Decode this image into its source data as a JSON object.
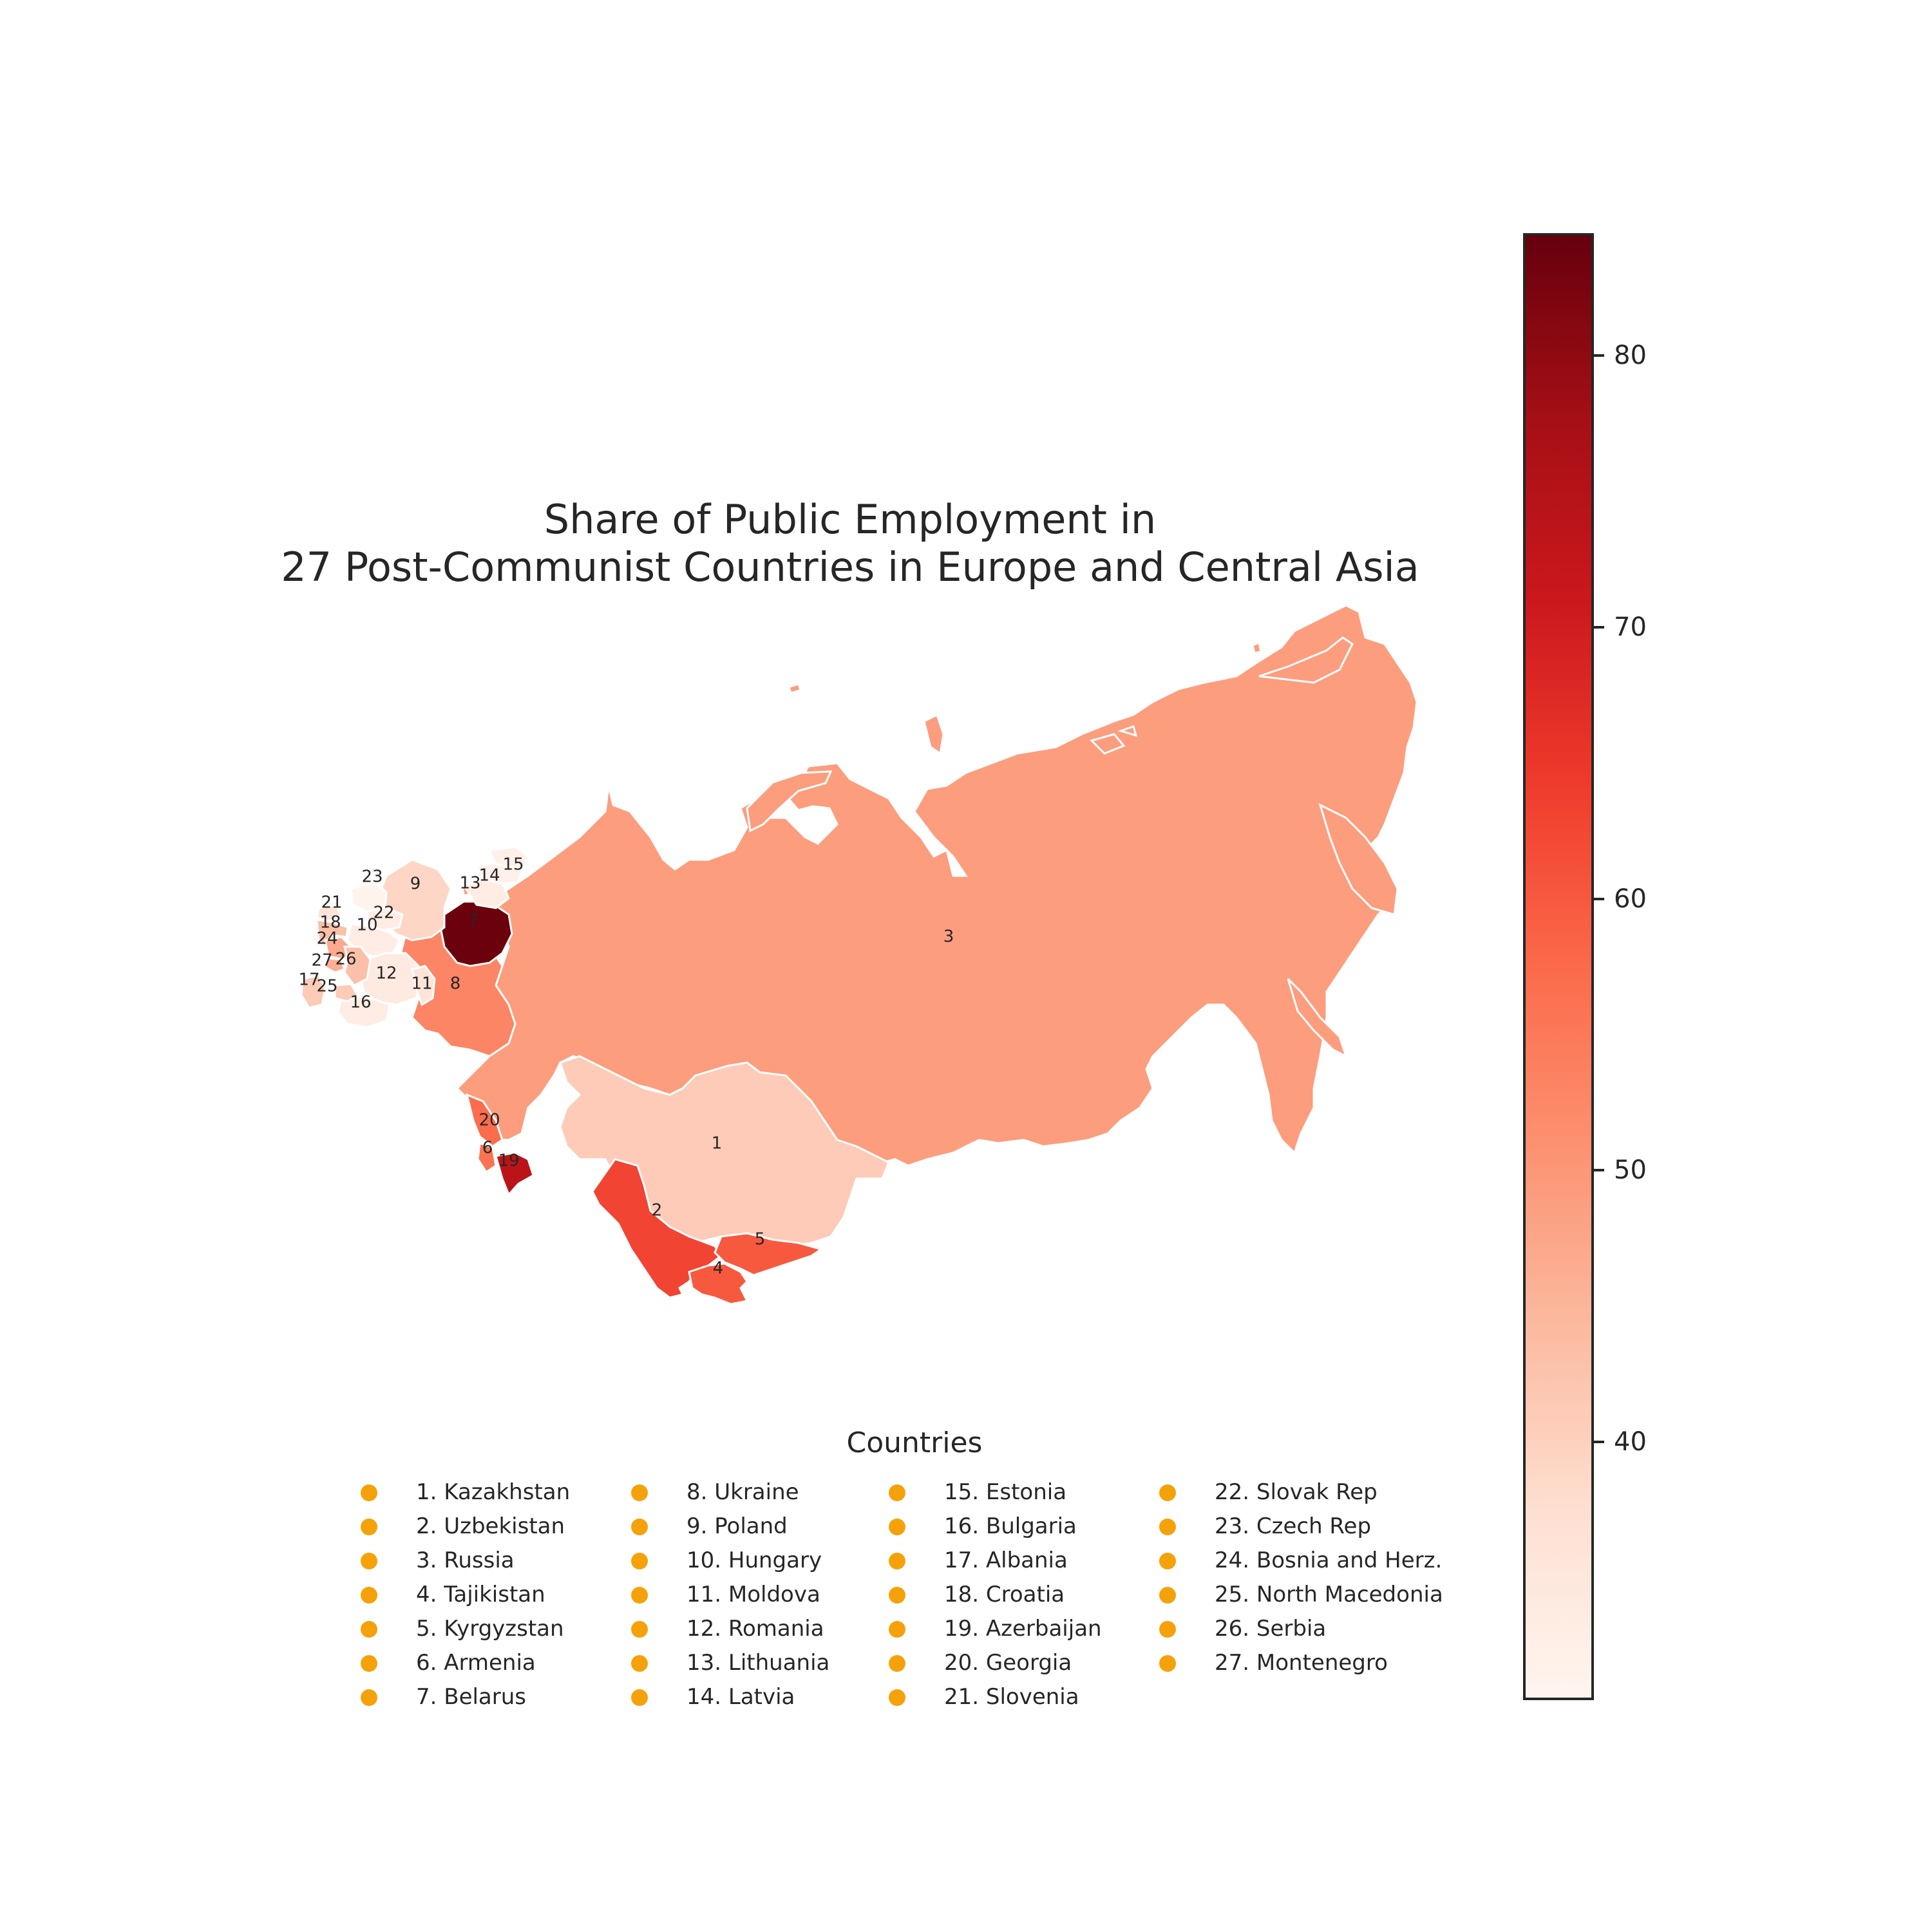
{
  "title_line1": "Share of Public Employment in",
  "title_line2": "27 Post-Communist Countries in Europe and Central Asia",
  "legend": {
    "title": "Countries",
    "marker_color": "#f5a20a",
    "items": [
      "1. Kazakhstan",
      "2. Uzbekistan",
      "3. Russia",
      "4. Tajikistan",
      "5. Kyrgyzstan",
      "6. Armenia",
      "7. Belarus",
      "8. Ukraine",
      "9. Poland",
      "10. Hungary",
      "11. Moldova",
      "12. Romania",
      "13. Lithuania",
      "14. Latvia",
      "15. Estonia",
      "16. Bulgaria",
      "17. Albania",
      "18. Croatia",
      "19. Azerbaijan",
      "20. Georgia",
      "21. Slovenia",
      "22. Slovak Rep",
      "23. Czech Rep",
      "24. Bosnia and Herz.",
      "25. North Macedonia",
      "26. Serbia",
      "27. Montenegro"
    ]
  },
  "colorbar": {
    "colormap": "Reds",
    "min": 30.5,
    "max": 84.5,
    "ticks": [
      "40",
      "50",
      "60",
      "70",
      "80"
    ]
  },
  "countries": [
    {
      "id": "1",
      "name": "Kazakhstan",
      "value": 41
    },
    {
      "id": "2",
      "name": "Uzbekistan",
      "value": 63
    },
    {
      "id": "3",
      "name": "Russia",
      "value": 49
    },
    {
      "id": "4",
      "name": "Tajikistan",
      "value": 60
    },
    {
      "id": "5",
      "name": "Kyrgyzstan",
      "value": 60
    },
    {
      "id": "6",
      "name": "Armenia",
      "value": 56
    },
    {
      "id": "7",
      "name": "Belarus",
      "value": 84
    },
    {
      "id": "8",
      "name": "Ukraine",
      "value": 53
    },
    {
      "id": "9",
      "name": "Poland",
      "value": 39
    },
    {
      "id": "10",
      "name": "Hungary",
      "value": 33
    },
    {
      "id": "11",
      "name": "Moldova",
      "value": 36
    },
    {
      "id": "12",
      "name": "Romania",
      "value": 34
    },
    {
      "id": "13",
      "name": "Lithuania",
      "value": 33
    },
    {
      "id": "14",
      "name": "Latvia",
      "value": 32
    },
    {
      "id": "15",
      "name": "Estonia",
      "value": 32
    },
    {
      "id": "16",
      "name": "Bulgaria",
      "value": 33
    },
    {
      "id": "17",
      "name": "Albania",
      "value": 41
    },
    {
      "id": "18",
      "name": "Croatia",
      "value": 43
    },
    {
      "id": "19",
      "name": "Azerbaijan",
      "value": 74
    },
    {
      "id": "20",
      "name": "Georgia",
      "value": 57
    },
    {
      "id": "21",
      "name": "Slovenia",
      "value": 36
    },
    {
      "id": "22",
      "name": "Slovak Rep",
      "value": 33
    },
    {
      "id": "23",
      "name": "Czech Rep",
      "value": 31
    },
    {
      "id": "24",
      "name": "Bosnia and Herz.",
      "value": 47
    },
    {
      "id": "25",
      "name": "North Macedonia",
      "value": 41
    },
    {
      "id": "26",
      "name": "Serbia",
      "value": 43
    },
    {
      "id": "27",
      "name": "Montenegro",
      "value": 46
    }
  ]
}
